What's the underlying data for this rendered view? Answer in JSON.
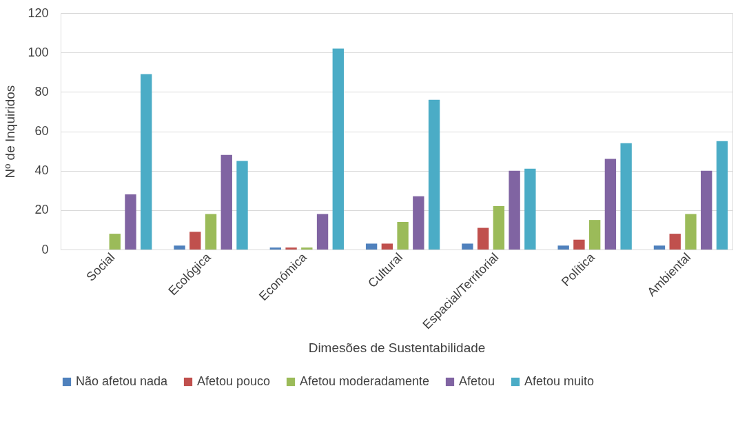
{
  "chart_data": {
    "type": "bar",
    "xlabel": "Dimesões de Sustentabilidade",
    "ylabel": "Nº de Inquiridos",
    "categories": [
      "Social",
      "Ecológica",
      "Económica",
      "Cultural",
      "Espacial/Territorial",
      "Política",
      "Ambiental"
    ],
    "series": [
      {
        "name": "Não afetou nada",
        "color": "#4f81bd",
        "values": [
          0,
          2,
          1,
          3,
          3,
          2,
          2
        ]
      },
      {
        "name": "Afetou pouco",
        "color": "#c0504d",
        "values": [
          0,
          9,
          1,
          3,
          11,
          5,
          8
        ]
      },
      {
        "name": "Afetou moderadamente",
        "color": "#9bbb59",
        "values": [
          8,
          18,
          1,
          14,
          22,
          15,
          18
        ]
      },
      {
        "name": "Afetou",
        "color": "#8064a2",
        "values": [
          28,
          48,
          18,
          27,
          40,
          46,
          40
        ]
      },
      {
        "name": "Afetou muito",
        "color": "#4bacc6",
        "values": [
          89,
          45,
          102,
          76,
          41,
          54,
          55
        ]
      }
    ],
    "ylim": [
      0,
      120
    ],
    "yticks": [
      0,
      20,
      40,
      60,
      80,
      100,
      120
    ],
    "grid": "y",
    "legend": "bottom"
  }
}
